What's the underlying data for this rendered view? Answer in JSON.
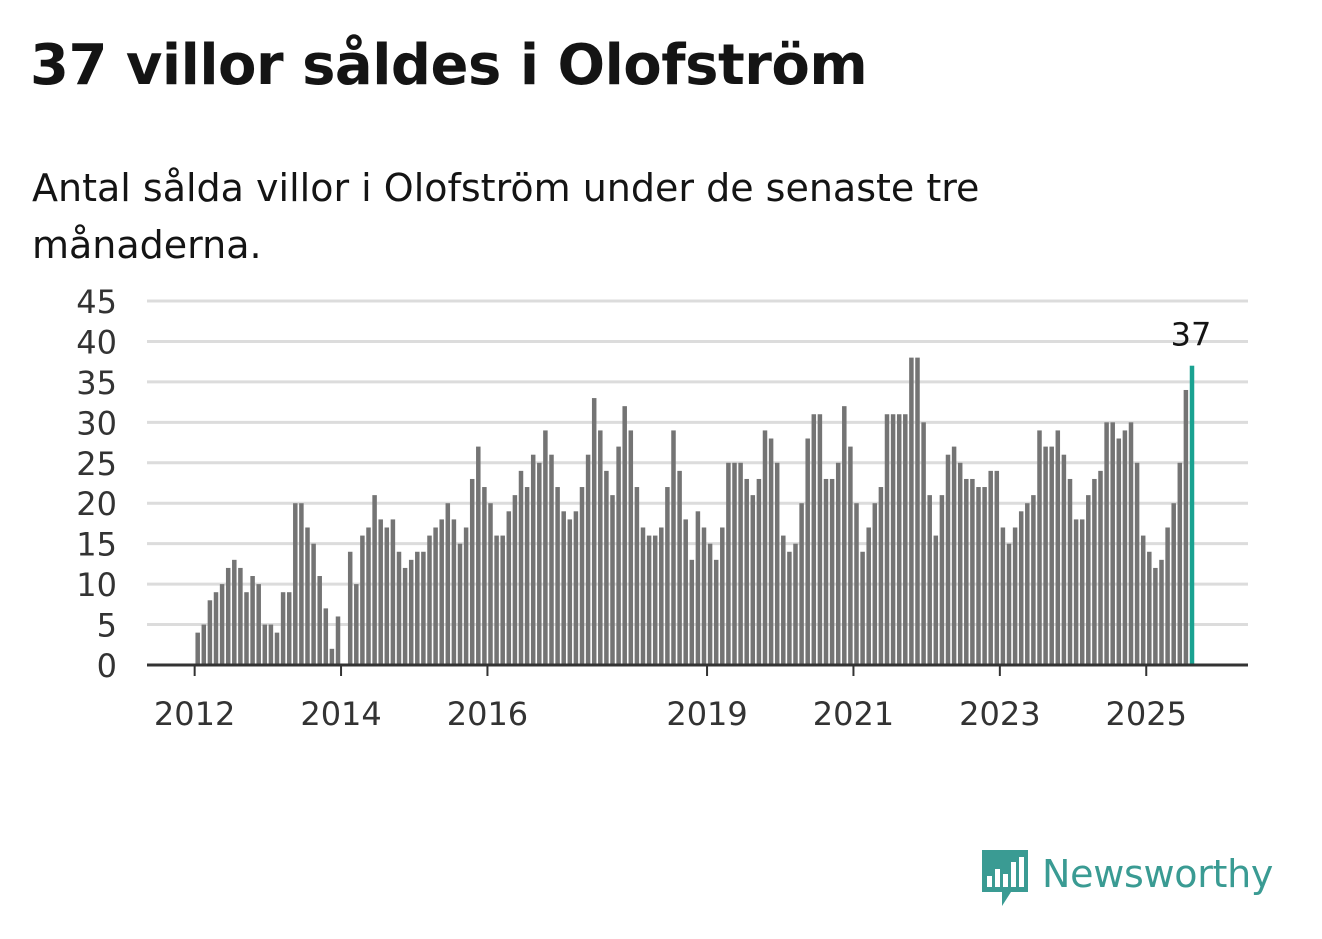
{
  "title": "37 villor såldes i Olofström",
  "subtitle": "Antal sålda villor i Olofström under de senaste tre månaderna.",
  "logo": {
    "name": "Newsworthy",
    "icon": "bar-chart-speech-bubble-icon",
    "color": "#3a9b93"
  },
  "chart_data": {
    "type": "bar",
    "start": "2012-01",
    "values": [
      4,
      5,
      8,
      9,
      10,
      12,
      13,
      12,
      9,
      11,
      10,
      5,
      5,
      4,
      9,
      9,
      20,
      20,
      17,
      15,
      11,
      7,
      2,
      6,
      0,
      14,
      10,
      16,
      17,
      21,
      18,
      17,
      18,
      14,
      12,
      13,
      14,
      14,
      16,
      17,
      18,
      20,
      18,
      15,
      17,
      23,
      27,
      22,
      20,
      16,
      16,
      19,
      21,
      24,
      22,
      26,
      25,
      29,
      26,
      22,
      19,
      18,
      19,
      22,
      26,
      33,
      29,
      24,
      21,
      27,
      32,
      29,
      22,
      17,
      16,
      16,
      17,
      22,
      29,
      24,
      18,
      13,
      19,
      17,
      15,
      13,
      17,
      25,
      25,
      25,
      23,
      21,
      23,
      29,
      28,
      25,
      16,
      14,
      15,
      20,
      28,
      31,
      31,
      23,
      23,
      25,
      32,
      27,
      20,
      14,
      17,
      20,
      22,
      31,
      31,
      31,
      31,
      38,
      38,
      30,
      21,
      16,
      21,
      26,
      27,
      25,
      23,
      23,
      22,
      22,
      24,
      24,
      17,
      15,
      17,
      19,
      20,
      21,
      29,
      27,
      27,
      29,
      26,
      23,
      18,
      18,
      21,
      23,
      24,
      30,
      30,
      28,
      29,
      30,
      25,
      16,
      14,
      12,
      13,
      17,
      20,
      25,
      34,
      37
    ],
    "highlight_label": "37",
    "x_ticks": [
      "2012",
      "2014",
      "2016",
      "2019",
      "2021",
      "2023",
      "2025"
    ],
    "y_ticks": [
      "0",
      "5",
      "10",
      "15",
      "20",
      "25",
      "30",
      "35",
      "40",
      "45"
    ],
    "ylim": [
      0,
      45
    ],
    "grid": true,
    "bar_color": "#747474",
    "highlight_color": "#1aa291",
    "grid_color": "#dcdcdc",
    "axis_color": "#333333"
  }
}
